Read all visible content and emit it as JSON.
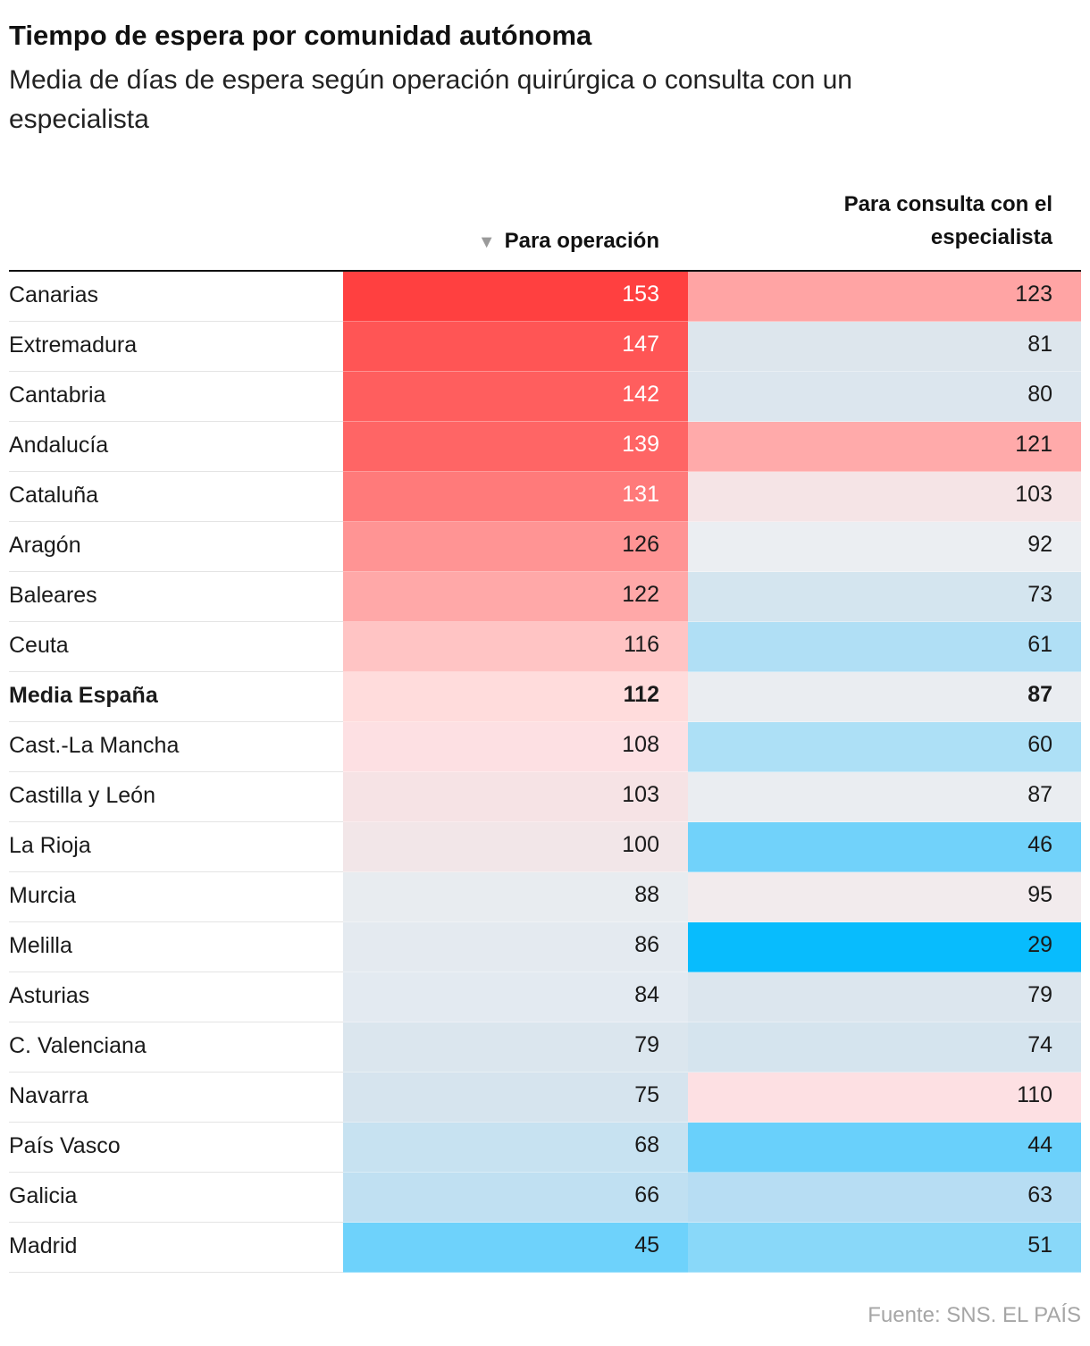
{
  "title": "Tiempo de espera por comunidad autónoma",
  "subtitle": "Media de días de espera según operación quirúrgica o consulta con un especialista",
  "columns": {
    "sort_indicator": "▼",
    "operation": "Para operación",
    "consultation_line1": "Para consulta con el",
    "consultation_line2": "especialista"
  },
  "source": "Fuente: SNS. EL PAÍS",
  "chart_data": {
    "type": "table",
    "columns": [
      "Para operación",
      "Para consulta con el especialista"
    ],
    "sorted_by": "Para operación",
    "sort_order": "descending",
    "highlight_row": "Media España",
    "color_scale": {
      "high": "#ff3b3b",
      "mid": "#eaeaea",
      "low": "#00bbff"
    },
    "rows": [
      {
        "region": "Canarias",
        "operacion": 153,
        "consulta": 123,
        "op_color": "#ff4040",
        "con_color": "#ffa4a4"
      },
      {
        "region": "Extremadura",
        "operacion": 147,
        "consulta": 81,
        "op_color": "#ff5555",
        "con_color": "#dde6ed"
      },
      {
        "region": "Cantabria",
        "operacion": 142,
        "consulta": 80,
        "op_color": "#ff5e5e",
        "con_color": "#dce6ee"
      },
      {
        "region": "Andalucía",
        "operacion": 139,
        "consulta": 121,
        "op_color": "#ff6565",
        "con_color": "#ffaaaa"
      },
      {
        "region": "Cataluña",
        "operacion": 131,
        "consulta": 103,
        "op_color": "#ff7a7a",
        "con_color": "#f5e4e6"
      },
      {
        "region": "Aragón",
        "operacion": 126,
        "consulta": 92,
        "op_color": "#ff9494",
        "con_color": "#ebeef2"
      },
      {
        "region": "Baleares",
        "operacion": 122,
        "consulta": 73,
        "op_color": "#ffa8a8",
        "con_color": "#d4e5ef"
      },
      {
        "region": "Ceuta",
        "operacion": 116,
        "consulta": 61,
        "op_color": "#ffc4c4",
        "con_color": "#b0dff5"
      },
      {
        "region": "Media España",
        "operacion": 112,
        "consulta": 87,
        "op_color": "#ffdcdc",
        "con_color": "#eaedf1"
      },
      {
        "region": "Cast.-La Mancha",
        "operacion": 108,
        "consulta": 60,
        "op_color": "#fde0e3",
        "con_color": "#ade0f6"
      },
      {
        "region": "Castilla y León",
        "operacion": 103,
        "consulta": 87,
        "op_color": "#f6e3e5",
        "con_color": "#eaedf1"
      },
      {
        "region": "La Rioja",
        "operacion": 100,
        "consulta": 46,
        "op_color": "#f2e6e8",
        "con_color": "#71d2fa"
      },
      {
        "region": "Murcia",
        "operacion": 88,
        "consulta": 95,
        "op_color": "#e8ecf0",
        "con_color": "#f2ebed"
      },
      {
        "region": "Melilla",
        "operacion": 86,
        "consulta": 29,
        "op_color": "#e4eaf0",
        "con_color": "#08bcfd"
      },
      {
        "region": "Asturias",
        "operacion": 84,
        "consulta": 79,
        "op_color": "#e3eaf1",
        "con_color": "#dce6ee"
      },
      {
        "region": "C. Valenciana",
        "operacion": 79,
        "consulta": 74,
        "op_color": "#dbe6ee",
        "con_color": "#d5e4ee"
      },
      {
        "region": "Navarra",
        "operacion": 75,
        "consulta": 110,
        "op_color": "#d6e4ee",
        "con_color": "#fde0e3"
      },
      {
        "region": "País Vasco",
        "operacion": 68,
        "consulta": 44,
        "op_color": "#c7e2f1",
        "con_color": "#69d0fb"
      },
      {
        "region": "Galicia",
        "operacion": 66,
        "consulta": 63,
        "op_color": "#c0e0f2",
        "con_color": "#b7ddf3"
      },
      {
        "region": "Madrid",
        "operacion": 45,
        "consulta": 51,
        "op_color": "#6ed2fb",
        "con_color": "#89d8f9"
      }
    ]
  }
}
